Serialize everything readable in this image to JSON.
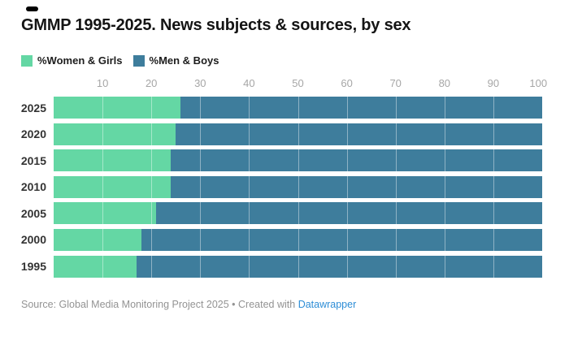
{
  "title": "GMMP 1995-2025. News subjects & sources, by sex",
  "legend": [
    {
      "label": "%Women & Girls",
      "color": "#64d7a4"
    },
    {
      "label": "%Men & Boys",
      "color": "#3e7d9c"
    }
  ],
  "chart_data": {
    "type": "bar",
    "stacked": true,
    "orientation": "horizontal",
    "title": "GMMP 1995-2025. News subjects & sources, by sex",
    "categories": [
      "2025",
      "2020",
      "2015",
      "2010",
      "2005",
      "2000",
      "1995"
    ],
    "series": [
      {
        "name": "%Women & Girls",
        "color": "#64d7a4",
        "values": [
          26,
          25,
          24,
          24,
          21,
          18,
          17
        ]
      },
      {
        "name": "%Men & Boys",
        "color": "#3e7d9c",
        "values": [
          74,
          75,
          76,
          76,
          79,
          82,
          83
        ]
      }
    ],
    "xlim": [
      0,
      100
    ],
    "ticks": [
      10,
      20,
      30,
      40,
      50,
      60,
      70,
      80,
      90,
      100
    ],
    "gridlines": [
      10,
      20,
      30,
      40,
      50,
      60,
      70,
      80,
      90
    ],
    "grid": "white-overlay-on-bars",
    "legend_position": "top-left",
    "axis_position": "top"
  },
  "colors": {
    "women": "#64d7a4",
    "men": "#3e7d9c",
    "title_text": "#141414",
    "year_label": "#333333",
    "tick_label": "#a6a6a6",
    "footer_text": "#939393",
    "link": "#2d8dd6"
  },
  "footer": {
    "source_text": "Source: Global Media Monitoring Project 2025",
    "separator": " • ",
    "created_text": "Created with ",
    "link_label": "Datawrapper"
  }
}
